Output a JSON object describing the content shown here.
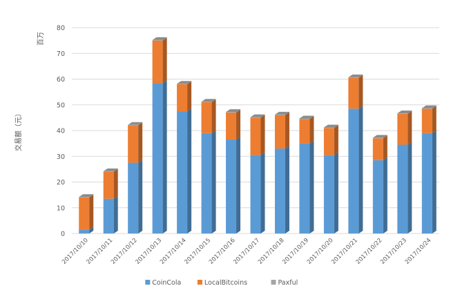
{
  "chart_data": {
    "type": "bar",
    "stacked": true,
    "style": "3d",
    "ylabel": "交易额（元）",
    "y_unit": "百万",
    "ylim": [
      0,
      80
    ],
    "yticks": [
      0,
      10,
      20,
      30,
      40,
      50,
      60,
      70,
      80
    ],
    "grid": true,
    "legend_position": "bottom",
    "categories": [
      "2017/10/10",
      "2017/10/11",
      "2017/10/12",
      "2017/10/13",
      "2017/10/14",
      "2017/10/15",
      "2017/10/16",
      "2017/10/17",
      "2017/10/18",
      "2017/10/19",
      "2017/10/20",
      "2017/10/21",
      "2017/10/22",
      "2017/10/23",
      "2017/10/24"
    ],
    "series": [
      {
        "name": "CoinCola",
        "color": "#5b9bd5",
        "values": [
          1.5,
          13.5,
          27.5,
          58.5,
          47.5,
          39,
          36.5,
          30.5,
          33,
          35,
          30.5,
          48.5,
          28.5,
          34.5,
          39
        ]
      },
      {
        "name": "LocalBitcoins",
        "color": "#ed7d31",
        "values": [
          12.5,
          10.5,
          14.5,
          16.5,
          10.5,
          12,
          10.5,
          14.5,
          13,
          9.5,
          10.5,
          12,
          8.5,
          12,
          9.5
        ]
      },
      {
        "name": "Paxful",
        "color": "#a5a5a5",
        "values": [
          0.2,
          0.2,
          0.2,
          0.2,
          0.2,
          0.2,
          0.2,
          0.2,
          0.2,
          0.2,
          0.2,
          0.2,
          0.2,
          0.2,
          0.2
        ]
      }
    ]
  }
}
